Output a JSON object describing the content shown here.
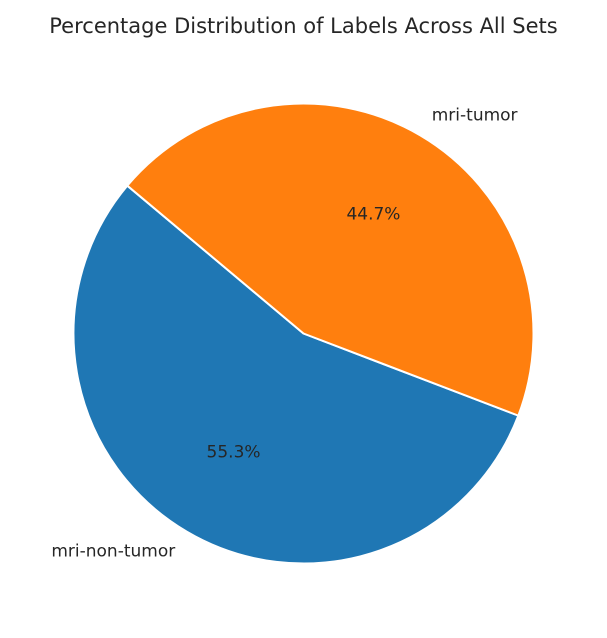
{
  "chart_data": {
    "type": "pie",
    "title": "Percentage Distribution of Labels Across All Sets",
    "slices": [
      {
        "label": "mri-non-tumor",
        "value": 55.3,
        "pct_label": "55.3%",
        "color": "#1f77b4"
      },
      {
        "label": "mri-tumor",
        "value": 44.7,
        "pct_label": "44.7%",
        "color": "#ff7f0e"
      }
    ],
    "start_angle_deg": 140,
    "direction": "counterclockwise",
    "edge_color": "#ffffff"
  }
}
